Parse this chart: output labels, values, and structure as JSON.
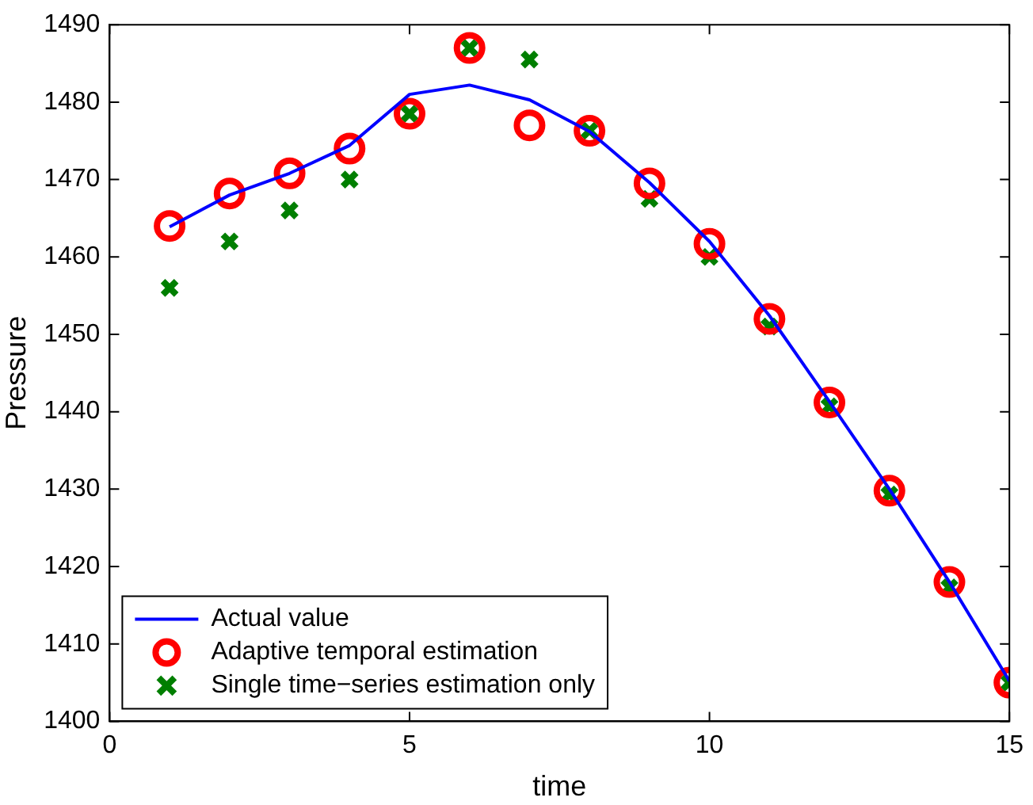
{
  "chart_data": {
    "type": "line",
    "xlabel": "time",
    "ylabel": "Pressure",
    "x": [
      1,
      2,
      3,
      4,
      5,
      6,
      7,
      8,
      9,
      10,
      11,
      12,
      13,
      14,
      15
    ],
    "series": [
      {
        "name": "Actual value",
        "color": "#0000ff",
        "marker": "none",
        "values": [
          1463.9,
          1468,
          1470.8,
          1474.4,
          1481,
          1482.2,
          1480.3,
          1476.2,
          1469.6,
          1462,
          1452.4,
          1441.3,
          1430,
          1418,
          1405.2
        ]
      },
      {
        "name": "Adaptive temporal estimation",
        "type": "scatter",
        "color": "#ff0000",
        "marker": "circle",
        "values": [
          1464,
          1468.2,
          1470.8,
          1474,
          1478.5,
          1487,
          1477,
          1476.3,
          1469.5,
          1461.7,
          1452,
          1441.2,
          1429.8,
          1418,
          1405
        ]
      },
      {
        "name": "Single time−series estimation only",
        "type": "scatter",
        "color": "#007f00",
        "marker": "cross",
        "values": [
          1456,
          1462,
          1466,
          1470,
          1478.5,
          1487,
          1485.5,
          1476.3,
          1467.5,
          1460,
          1451,
          1440.7,
          1429.3,
          1417.3,
          1405
        ]
      }
    ],
    "xlim": [
      0,
      15
    ],
    "xticks": [
      0,
      5,
      10,
      15
    ],
    "ylim": [
      1400,
      1490
    ],
    "yticks": [
      1400,
      1410,
      1420,
      1430,
      1440,
      1450,
      1460,
      1470,
      1480,
      1490
    ],
    "grid": false,
    "legend": "bottom left"
  }
}
